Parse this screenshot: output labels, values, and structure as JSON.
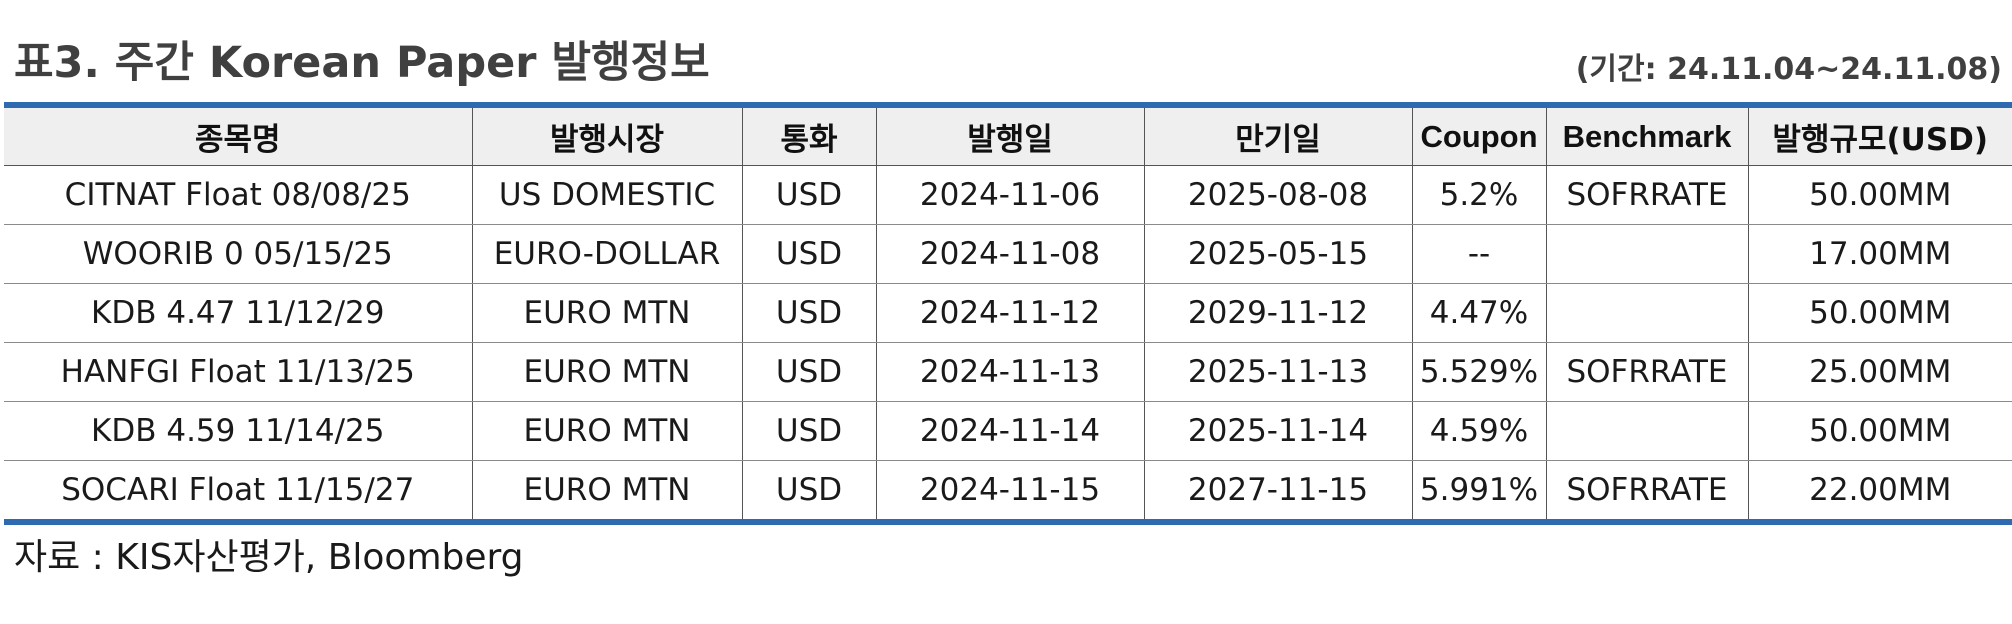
{
  "title": "표3. 주간 Korean Paper 발행정보",
  "period": "(기간: 24.11.04~24.11.08)",
  "table": {
    "headers": [
      "종목명",
      "발행시장",
      "통화",
      "발행일",
      "만기일",
      "Coupon",
      "Benchmark",
      "발행규모(USD)"
    ],
    "rows": [
      [
        "CITNAT Float 08/08/25",
        "US DOMESTIC",
        "USD",
        "2024-11-06",
        "2025-08-08",
        "5.2%",
        "SOFRRATE",
        "50.00MM"
      ],
      [
        "WOORIB 0 05/15/25",
        "EURO-DOLLAR",
        "USD",
        "2024-11-08",
        "2025-05-15",
        "--",
        "",
        "17.00MM"
      ],
      [
        "KDB 4.47 11/12/29",
        "EURO MTN",
        "USD",
        "2024-11-12",
        "2029-11-12",
        "4.47%",
        "",
        "50.00MM"
      ],
      [
        "HANFGI Float 11/13/25",
        "EURO MTN",
        "USD",
        "2024-11-13",
        "2025-11-13",
        "5.529%",
        "SOFRRATE",
        "25.00MM"
      ],
      [
        "KDB 4.59 11/14/25",
        "EURO MTN",
        "USD",
        "2024-11-14",
        "2025-11-14",
        "4.59%",
        "",
        "50.00MM"
      ],
      [
        "SOCARI Float 11/15/27",
        "EURO MTN",
        "USD",
        "2024-11-15",
        "2027-11-15",
        "5.991%",
        "SOFRRATE",
        "22.00MM"
      ]
    ]
  },
  "source": "자료 : KIS자산평가, Bloomberg",
  "colors": {
    "accent": "#2e6ab0",
    "header_bg": "#efefef",
    "title_text": "#404040"
  }
}
